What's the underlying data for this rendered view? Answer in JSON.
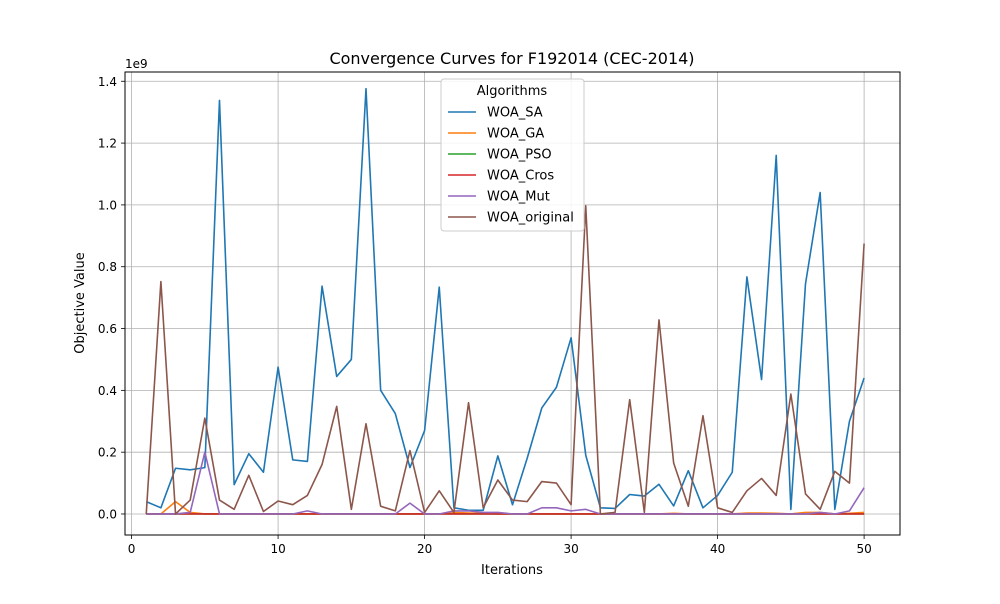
{
  "chart_data": {
    "type": "line",
    "title": "Convergence Curves for F192014 (CEC-2014)",
    "xlabel": "Iterations",
    "ylabel": "Objective Value",
    "y_scale_label": "1e9",
    "xlim": [
      -0.45,
      52.45
    ],
    "ylim": [
      -0.068,
      1.43
    ],
    "x_ticks": [
      0,
      10,
      20,
      30,
      40,
      50
    ],
    "x_tick_labels": [
      "0",
      "10",
      "20",
      "30",
      "40",
      "50"
    ],
    "y_ticks": [
      0.0,
      0.2,
      0.4,
      0.6,
      0.8,
      1.0,
      1.2,
      1.4
    ],
    "y_tick_labels": [
      "0.0",
      "0.2",
      "0.4",
      "0.6",
      "0.8",
      "1.0",
      "1.2",
      "1.4"
    ],
    "grid": true,
    "legend": {
      "title": "Algorithms",
      "placement": "top-center"
    },
    "x": [
      1,
      2,
      3,
      4,
      5,
      6,
      7,
      8,
      9,
      10,
      11,
      12,
      13,
      14,
      15,
      16,
      17,
      18,
      19,
      20,
      21,
      22,
      23,
      24,
      25,
      26,
      27,
      28,
      29,
      30,
      31,
      32,
      33,
      34,
      35,
      36,
      37,
      38,
      39,
      40,
      41,
      42,
      43,
      44,
      45,
      46,
      47,
      48,
      49,
      50
    ],
    "series": [
      {
        "name": "WOA_SA",
        "color": "#1f77b4",
        "values": [
          0.04,
          0.02,
          0.148,
          0.143,
          0.15,
          1.338,
          0.095,
          0.195,
          0.135,
          0.475,
          0.175,
          0.17,
          0.737,
          0.445,
          0.5,
          1.376,
          0.4,
          0.325,
          0.15,
          0.27,
          0.734,
          0.02,
          0.012,
          0.012,
          0.188,
          0.03,
          0.18,
          0.343,
          0.41,
          0.57,
          0.19,
          0.02,
          0.018,
          0.063,
          0.058,
          0.096,
          0.026,
          0.14,
          0.02,
          0.06,
          0.135,
          0.767,
          0.435,
          1.16,
          0.015,
          0.745,
          1.04,
          0.015,
          0.3,
          0.44
        ]
      },
      {
        "name": "WOA_GA",
        "color": "#ff7f0e",
        "values": [
          0.0,
          0.0,
          0.04,
          0.005,
          0.0,
          0.0,
          0.0,
          0.0,
          0.0,
          0.0,
          0.0,
          0.0,
          0.0,
          0.0,
          0.0,
          0.0,
          0.0,
          0.0,
          0.0,
          0.0,
          0.0,
          0.005,
          0.003,
          0.002,
          0.0,
          0.0,
          0.0,
          0.0,
          0.0,
          0.0,
          0.0,
          0.0,
          0.0,
          0.0,
          0.0,
          0.0,
          0.002,
          0.0,
          0.0,
          0.0,
          0.0,
          0.003,
          0.003,
          0.002,
          0.0,
          0.005,
          0.005,
          0.0,
          0.002,
          0.005
        ]
      },
      {
        "name": "WOA_PSO",
        "color": "#2ca02c",
        "values": [
          0.0,
          0.0,
          0.0,
          0.0,
          0.0,
          0.0,
          0.0,
          0.0,
          0.0,
          0.0,
          0.0,
          0.0,
          0.0,
          0.0,
          0.0,
          0.0,
          0.0,
          0.0,
          0.0,
          0.0,
          0.0,
          0.0,
          0.0,
          0.0,
          0.0,
          0.0,
          0.0,
          0.0,
          0.0,
          0.0,
          0.0,
          0.0,
          0.0,
          0.0,
          0.0,
          0.0,
          0.0,
          0.0,
          0.0,
          0.0,
          0.0,
          0.0,
          0.0,
          0.0,
          0.0,
          0.0,
          0.0,
          0.0,
          0.0,
          0.0
        ]
      },
      {
        "name": "WOA_Cros",
        "color": "#d62728",
        "values": [
          0.0,
          0.0,
          0.0,
          0.0,
          0.0,
          0.0,
          0.0,
          0.0,
          0.0,
          0.0,
          0.0,
          0.0,
          0.0,
          0.0,
          0.0,
          0.0,
          0.0,
          0.0,
          0.0,
          0.0,
          0.0,
          0.0,
          0.0,
          0.0,
          0.0,
          0.0,
          0.0,
          0.0,
          0.0,
          0.0,
          0.0,
          0.0,
          0.0,
          0.0,
          0.0,
          0.0,
          0.0,
          0.0,
          0.0,
          0.0,
          0.0,
          0.0,
          0.0,
          0.0,
          0.0,
          0.0,
          0.0,
          0.0,
          0.0,
          0.0
        ]
      },
      {
        "name": "WOA_Mut",
        "color": "#9467bd",
        "values": [
          0.0,
          0.0,
          0.0,
          0.005,
          0.2,
          0.0,
          0.0,
          0.0,
          0.0,
          0.0,
          0.0,
          0.01,
          0.0,
          0.0,
          0.0,
          0.0,
          0.0,
          0.0,
          0.035,
          0.0,
          0.0,
          0.01,
          0.01,
          0.005,
          0.005,
          0.0,
          0.0,
          0.02,
          0.02,
          0.01,
          0.015,
          0.0,
          0.0,
          0.0,
          0.0,
          0.0,
          0.0,
          0.0,
          0.0,
          0.0,
          0.0,
          0.0,
          0.0,
          0.0,
          0.0,
          0.0,
          0.005,
          0.0,
          0.01,
          0.085
        ]
      },
      {
        "name": "WOA_original",
        "color": "#8c564b",
        "values": [
          0.0,
          0.752,
          0.0,
          0.045,
          0.31,
          0.045,
          0.015,
          0.125,
          0.008,
          0.042,
          0.03,
          0.06,
          0.16,
          0.348,
          0.015,
          0.292,
          0.025,
          0.01,
          0.205,
          0.005,
          0.075,
          0.005,
          0.36,
          0.02,
          0.11,
          0.045,
          0.04,
          0.105,
          0.1,
          0.03,
          0.997,
          0.0,
          0.005,
          0.37,
          0.005,
          0.628,
          0.165,
          0.025,
          0.318,
          0.02,
          0.005,
          0.075,
          0.115,
          0.06,
          0.388,
          0.065,
          0.015,
          0.138,
          0.1,
          0.875
        ]
      }
    ]
  }
}
